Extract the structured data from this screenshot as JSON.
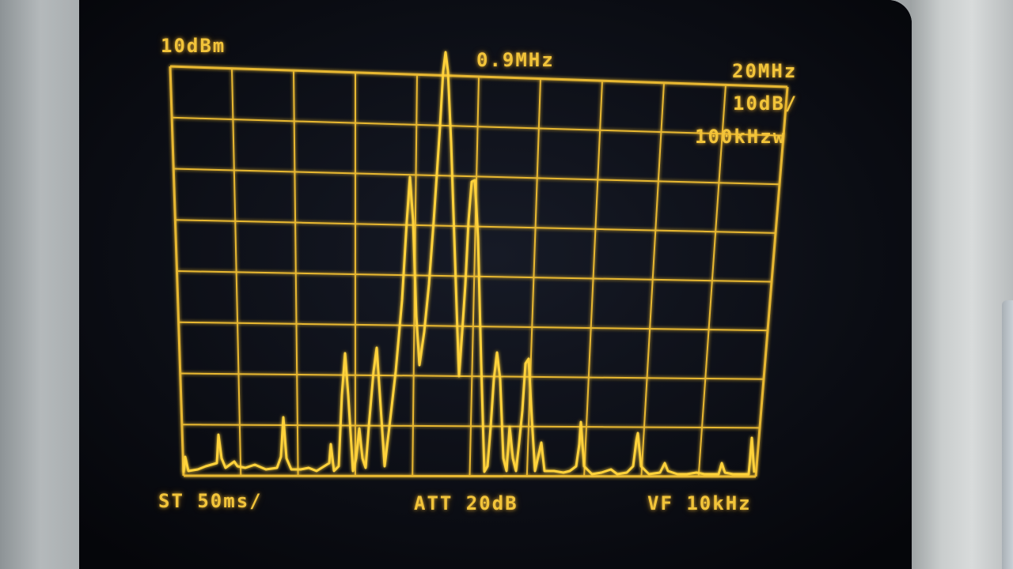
{
  "display": {
    "ref_level": "10dBm",
    "center_freq": "0.9MHz",
    "span": "20MHz",
    "scale": "10dB/",
    "rbw": "100kHzw",
    "sweep_time": "ST 50ms/",
    "attenuation": "ATT 20dB",
    "video_filter": "VF 10kHz"
  },
  "colors": {
    "trace": "#ffd23a",
    "grid": "#e8b830",
    "screen": "#0b0d14"
  }
}
